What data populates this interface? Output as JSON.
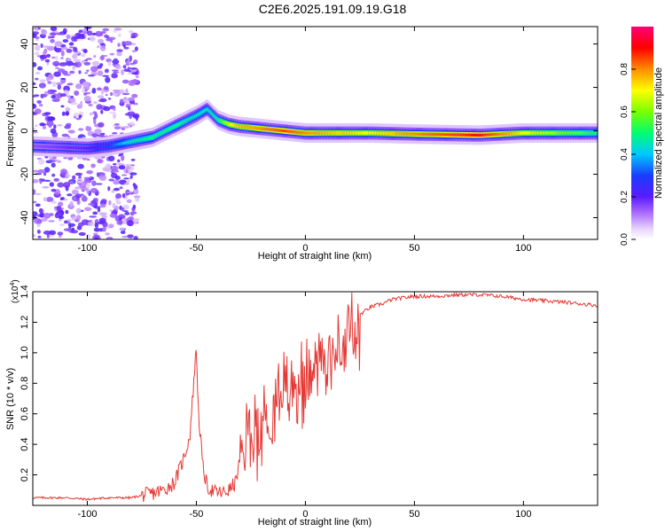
{
  "title": "C2E6.2025.191.09.19.G18",
  "colors": {
    "snr_line": "#e53935",
    "axis": "#000000",
    "scatter": "#7b3fe4"
  },
  "chart_data": [
    {
      "type": "heatmap",
      "xlabel": "Height of straight line (km)",
      "ylabel": "Frequency (Hz)",
      "xlim": [
        -125,
        134
      ],
      "ylim": [
        -50,
        48
      ],
      "x_ticks": [
        -100,
        -50,
        0,
        50,
        100
      ],
      "y_ticks": [
        -40,
        -20,
        0,
        20,
        40
      ],
      "colorbar": {
        "label": "Normalized spectral amplitude",
        "range": [
          0,
          1
        ],
        "ticks": [
          0.0,
          0.2,
          0.4,
          0.6,
          0.8
        ]
      },
      "ridge": {
        "x": [
          -125,
          -100,
          -90,
          -80,
          -70,
          -60,
          -50,
          -45,
          -40,
          -35,
          -30,
          -20,
          -10,
          0,
          10,
          30,
          50,
          80,
          100,
          134
        ],
        "freq": [
          -7,
          -8,
          -7,
          -5,
          -3,
          2,
          7,
          10,
          5,
          3,
          2,
          1,
          0,
          -1,
          -1,
          -1,
          -1.5,
          -2,
          -1,
          -1
        ],
        "amplitude": [
          0.15,
          0.2,
          0.3,
          0.45,
          0.5,
          0.5,
          0.45,
          0.45,
          0.5,
          0.7,
          0.75,
          0.8,
          0.85,
          0.8,
          0.75,
          0.7,
          0.8,
          0.9,
          0.7,
          0.5
        ]
      }
    },
    {
      "type": "line",
      "xlabel": "Height of straight line (km)",
      "ylabel": "SNR (10 * v/v)",
      "y_multiplier": "(x10",
      "y_multiplier_exp": "4",
      "xlim": [
        -125,
        134
      ],
      "ylim": [
        0,
        1.4
      ],
      "x_ticks": [
        -100,
        -50,
        0,
        50,
        100
      ],
      "y_ticks": [
        0.2,
        0.4,
        0.6,
        0.8,
        1.0,
        1.2,
        1.4
      ],
      "series": [
        {
          "x": [
            -125,
            -110,
            -100,
            -90,
            -80,
            -70,
            -65,
            -60,
            -56,
            -53,
            -51,
            -50,
            -49,
            -47,
            -45,
            -42,
            -38,
            -35,
            -32,
            -30,
            -28,
            -25,
            -20,
            -15,
            -10,
            -5,
            0,
            5,
            10,
            15,
            20,
            25,
            30,
            35,
            40,
            45,
            50,
            60,
            70,
            80,
            90,
            100,
            110,
            120,
            134
          ],
          "values": [
            0.05,
            0.05,
            0.04,
            0.05,
            0.05,
            0.08,
            0.1,
            0.15,
            0.3,
            0.45,
            0.85,
            1.04,
            0.6,
            0.25,
            0.12,
            0.09,
            0.08,
            0.1,
            0.15,
            0.3,
            0.45,
            0.5,
            0.55,
            0.65,
            0.8,
            0.85,
            0.9,
            0.95,
            1.05,
            1.1,
            1.2,
            1.25,
            1.3,
            1.32,
            1.35,
            1.36,
            1.37,
            1.37,
            1.38,
            1.38,
            1.37,
            1.35,
            1.34,
            1.33,
            1.31
          ]
        }
      ]
    }
  ]
}
